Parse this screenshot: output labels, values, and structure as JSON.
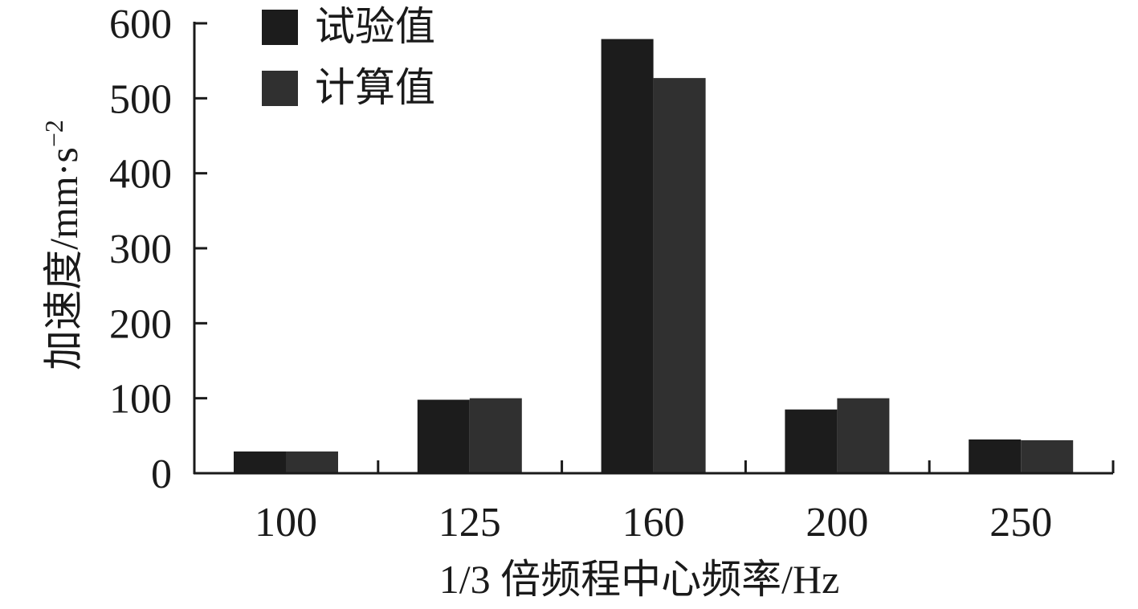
{
  "chart_data": {
    "type": "bar",
    "categories": [
      "100",
      "125",
      "160",
      "200",
      "250"
    ],
    "series": [
      {
        "name": "试验值",
        "values": [
          29,
          98,
          579,
          85,
          45
        ],
        "color": "#1c1c1c"
      },
      {
        "name": "计算值",
        "values": [
          29,
          100,
          527,
          100,
          44
        ],
        "color": "#303030"
      }
    ],
    "xlabel": "1/3 倍频程中心频率/Hz",
    "ylabel_main": "加速度/mm·s",
    "ylabel_sup": "−2",
    "ylim": [
      0,
      600
    ],
    "yticks": [
      "0",
      "100",
      "200",
      "300",
      "400",
      "500",
      "600"
    ],
    "legend_position": "top-left",
    "grid": false,
    "axis_color": "#1a1a1a"
  }
}
